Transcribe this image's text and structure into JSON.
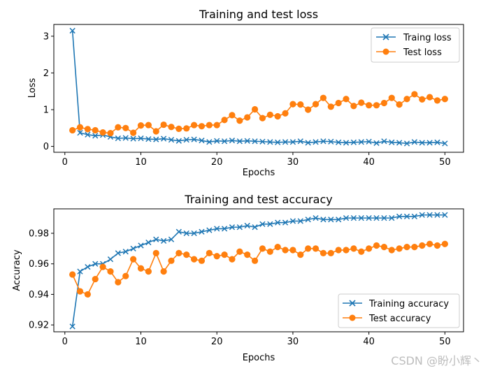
{
  "chart_data": [
    {
      "type": "line",
      "title": "Training and test loss",
      "xlabel": "Epochs",
      "ylabel": "Loss",
      "xlim": [
        -1.45,
        52.45
      ],
      "ylim": [
        -0.16,
        3.32
      ],
      "xticks": [
        0,
        10,
        20,
        30,
        40,
        50
      ],
      "yticks": [
        0,
        1,
        2,
        3
      ],
      "ytick_decimals": 0,
      "legend_position": "upper-right",
      "x": [
        1,
        2,
        3,
        4,
        5,
        6,
        7,
        8,
        9,
        10,
        11,
        12,
        13,
        14,
        15,
        16,
        17,
        18,
        19,
        20,
        21,
        22,
        23,
        24,
        25,
        26,
        27,
        28,
        29,
        30,
        31,
        32,
        33,
        34,
        35,
        36,
        37,
        38,
        39,
        40,
        41,
        42,
        43,
        44,
        45,
        46,
        47,
        48,
        49,
        50
      ],
      "series": [
        {
          "name": "Traing loss",
          "color": "#1f77b4",
          "marker": "x",
          "values": [
            3.15,
            0.37,
            0.32,
            0.29,
            0.31,
            0.26,
            0.22,
            0.23,
            0.21,
            0.22,
            0.2,
            0.19,
            0.21,
            0.18,
            0.15,
            0.18,
            0.19,
            0.16,
            0.12,
            0.15,
            0.14,
            0.16,
            0.14,
            0.15,
            0.14,
            0.13,
            0.12,
            0.11,
            0.12,
            0.12,
            0.14,
            0.1,
            0.12,
            0.14,
            0.13,
            0.11,
            0.1,
            0.11,
            0.12,
            0.13,
            0.09,
            0.14,
            0.11,
            0.1,
            0.08,
            0.12,
            0.1,
            0.1,
            0.11,
            0.08
          ]
        },
        {
          "name": "Test loss",
          "color": "#ff7f0e",
          "marker": "o",
          "values": [
            0.44,
            0.52,
            0.47,
            0.44,
            0.38,
            0.36,
            0.52,
            0.5,
            0.37,
            0.57,
            0.58,
            0.41,
            0.59,
            0.53,
            0.48,
            0.49,
            0.58,
            0.55,
            0.58,
            0.58,
            0.72,
            0.85,
            0.7,
            0.79,
            1.01,
            0.77,
            0.86,
            0.82,
            0.9,
            1.15,
            1.14,
            1.0,
            1.15,
            1.32,
            1.08,
            1.18,
            1.29,
            1.1,
            1.19,
            1.12,
            1.12,
            1.18,
            1.32,
            1.14,
            1.29,
            1.42,
            1.28,
            1.34,
            1.25,
            1.29
          ]
        }
      ]
    },
    {
      "type": "line",
      "title": "Training and test accuracy",
      "xlabel": "Epochs",
      "ylabel": "Accuracy",
      "xlim": [
        -1.45,
        52.45
      ],
      "ylim": [
        0.9155,
        0.996
      ],
      "xticks": [
        0,
        10,
        20,
        30,
        40,
        50
      ],
      "yticks": [
        0.92,
        0.94,
        0.96,
        0.98
      ],
      "ytick_decimals": 2,
      "legend_position": "lower-right",
      "x": [
        1,
        2,
        3,
        4,
        5,
        6,
        7,
        8,
        9,
        10,
        11,
        12,
        13,
        14,
        15,
        16,
        17,
        18,
        19,
        20,
        21,
        22,
        23,
        24,
        25,
        26,
        27,
        28,
        29,
        30,
        31,
        32,
        33,
        34,
        35,
        36,
        37,
        38,
        39,
        40,
        41,
        42,
        43,
        44,
        45,
        46,
        47,
        48,
        49,
        50
      ],
      "series": [
        {
          "name": "Training accuracy",
          "color": "#1f77b4",
          "marker": "x",
          "values": [
            0.919,
            0.955,
            0.958,
            0.96,
            0.96,
            0.963,
            0.967,
            0.968,
            0.97,
            0.972,
            0.974,
            0.976,
            0.975,
            0.976,
            0.981,
            0.98,
            0.98,
            0.981,
            0.982,
            0.983,
            0.983,
            0.984,
            0.984,
            0.985,
            0.984,
            0.986,
            0.986,
            0.987,
            0.987,
            0.988,
            0.988,
            0.989,
            0.99,
            0.989,
            0.989,
            0.989,
            0.99,
            0.99,
            0.99,
            0.99,
            0.99,
            0.99,
            0.99,
            0.991,
            0.991,
            0.991,
            0.992,
            0.992,
            0.992,
            0.992
          ]
        },
        {
          "name": "Test accuracy",
          "color": "#ff7f0e",
          "marker": "o",
          "values": [
            0.953,
            0.942,
            0.94,
            0.95,
            0.958,
            0.955,
            0.948,
            0.952,
            0.963,
            0.957,
            0.955,
            0.967,
            0.955,
            0.962,
            0.967,
            0.966,
            0.963,
            0.962,
            0.967,
            0.965,
            0.966,
            0.963,
            0.968,
            0.966,
            0.962,
            0.97,
            0.968,
            0.971,
            0.969,
            0.969,
            0.966,
            0.97,
            0.97,
            0.967,
            0.967,
            0.969,
            0.969,
            0.97,
            0.968,
            0.97,
            0.972,
            0.971,
            0.969,
            0.97,
            0.971,
            0.971,
            0.972,
            0.973,
            0.972,
            0.973
          ]
        }
      ]
    }
  ],
  "watermark": "CSDN @盼小辉丶"
}
